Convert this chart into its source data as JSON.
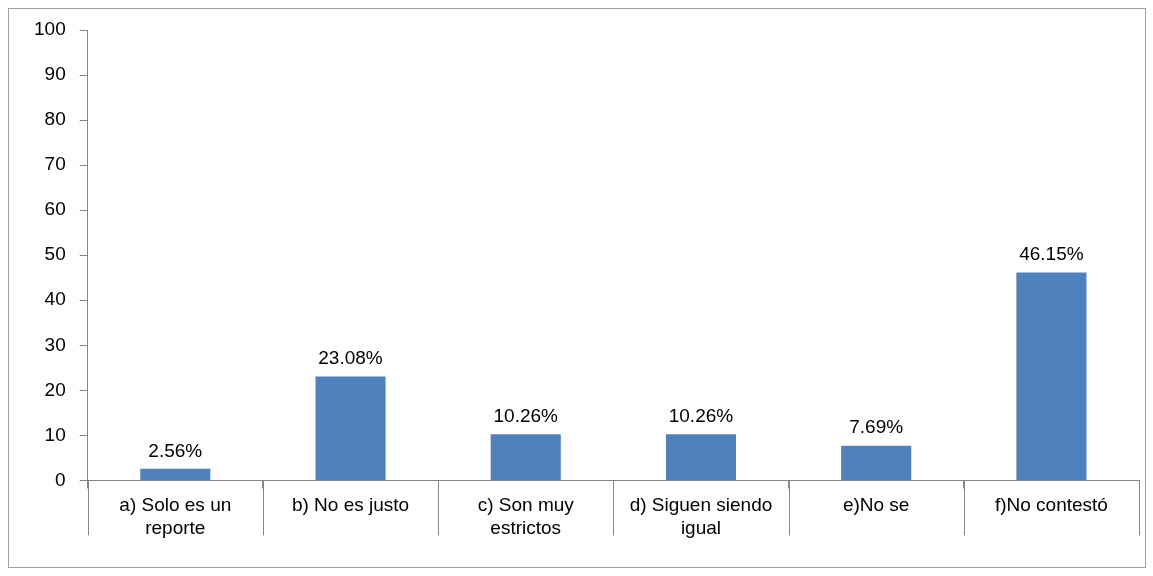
{
  "chart_data": {
    "type": "bar",
    "categories": [
      "a) Solo es un reporte",
      "b) No es justo",
      "c) Son muy estrictos",
      "d) Siguen siendo igual",
      "e)No se",
      "f)No contestó"
    ],
    "values": [
      2.56,
      23.08,
      10.26,
      10.26,
      7.69,
      46.15
    ],
    "value_labels": [
      "2.56%",
      "23.08%",
      "10.26%",
      "10.26%",
      "7.69%",
      "46.15%"
    ],
    "color": "#4f81bd",
    "ylim": [
      0,
      100
    ],
    "yticks": [
      0,
      10,
      20,
      30,
      40,
      50,
      60,
      70,
      80,
      90,
      100
    ],
    "grid": false,
    "legend": false
  }
}
